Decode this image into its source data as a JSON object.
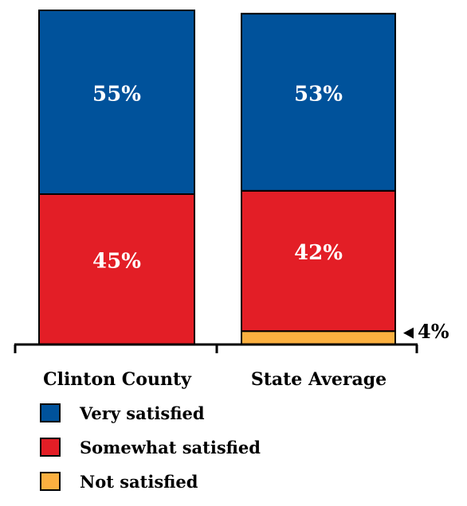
{
  "chart_data": {
    "type": "bar",
    "stacked": true,
    "categories": [
      "Clinton County",
      "State Average"
    ],
    "series": [
      {
        "name": "Not satisfied",
        "color": "#FBB040",
        "values": [
          0,
          4
        ],
        "labels": [
          "",
          "4%"
        ]
      },
      {
        "name": "Somewhat satisfied",
        "color": "#E31E26",
        "values": [
          45,
          42
        ],
        "labels": [
          "45%",
          "42%"
        ]
      },
      {
        "name": "Very satisfied",
        "color": "#00529B",
        "values": [
          55,
          53
        ],
        "labels": [
          "55%",
          "53%"
        ]
      }
    ],
    "ylim": [
      0,
      100
    ],
    "legend_position": "bottom-left"
  }
}
